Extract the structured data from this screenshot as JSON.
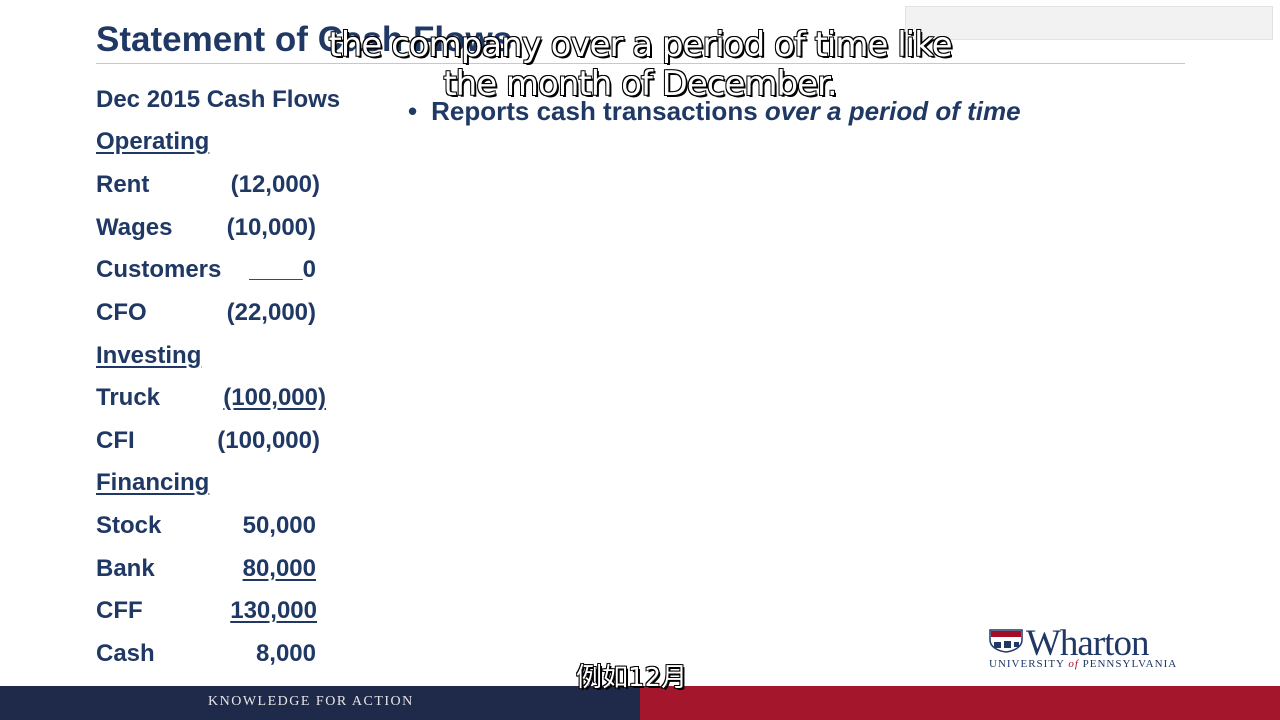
{
  "slide": {
    "title": "Statement of Cash Flows",
    "period_heading": "Dec 2015 Cash Flows",
    "bullet_text": "Reports cash transactions ",
    "bullet_emphasis": "over a period of time"
  },
  "subtitles": {
    "english": "the company over a period of time like the month of December.",
    "chinese": "例如12月"
  },
  "statement": {
    "operating": {
      "heading": "Operating",
      "rows": [
        {
          "label": "Rent",
          "value": "(12,000)"
        },
        {
          "label": "Wages",
          "value": "(10,000)"
        },
        {
          "label": "Customers",
          "value": "____0"
        },
        {
          "label": "CFO",
          "value": "(22,000)"
        }
      ]
    },
    "investing": {
      "heading": "Investing",
      "rows": [
        {
          "label": "Truck",
          "value": "(100,000)"
        },
        {
          "label": "CFI",
          "value": "(100,000)"
        }
      ]
    },
    "financing": {
      "heading": "Financing",
      "rows": [
        {
          "label": "Stock",
          "value": "50,000"
        },
        {
          "label": "Bank",
          "value": "80,000"
        },
        {
          "label": "CFF",
          "value": "130,000"
        },
        {
          "label": "Cash",
          "value": "8,000"
        }
      ]
    }
  },
  "branding": {
    "logo_name": "Wharton",
    "logo_sub_1": "UNIVERSITY ",
    "logo_sub_of": "of",
    "logo_sub_2": " PENNSYLVANIA",
    "footer_tagline": "KNOWLEDGE FOR ACTION",
    "colors": {
      "navy": "#1f3864",
      "footer_blue": "#1f2a4b",
      "footer_red": "#a4162b"
    }
  }
}
